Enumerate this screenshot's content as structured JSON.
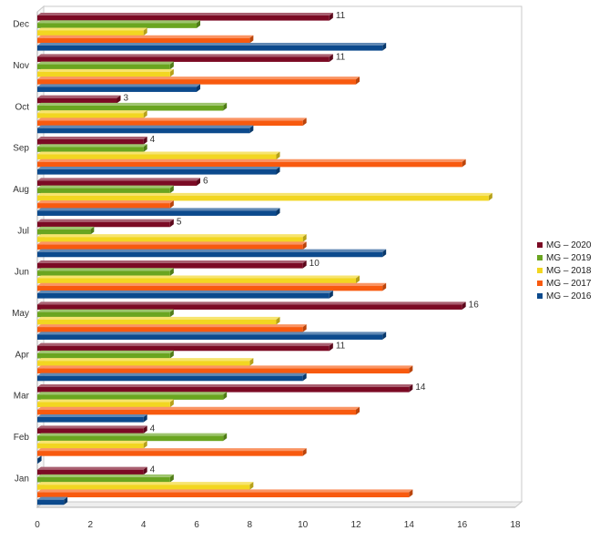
{
  "chart_data": {
    "type": "bar",
    "orientation": "horizontal",
    "style": "3d",
    "categories": [
      "Jan",
      "Feb",
      "Mar",
      "Apr",
      "May",
      "Jun",
      "Jul",
      "Aug",
      "Sep",
      "Oct",
      "Nov",
      "Dec"
    ],
    "series": [
      {
        "name": "MG – 2020",
        "color": "#7b0a24",
        "values": [
          4,
          4,
          14,
          11,
          16,
          10,
          5,
          6,
          4,
          3,
          11,
          11
        ]
      },
      {
        "name": "MG – 2019",
        "color": "#6aa520",
        "values": [
          5,
          7,
          7,
          5,
          5,
          5,
          2,
          5,
          4,
          7,
          5,
          6
        ]
      },
      {
        "name": "MG – 2018",
        "color": "#f2d621",
        "values": [
          8,
          4,
          5,
          8,
          9,
          12,
          10,
          17,
          9,
          4,
          5,
          4
        ]
      },
      {
        "name": "MG – 2017",
        "color": "#f85a0f",
        "values": [
          14,
          10,
          12,
          14,
          10,
          13,
          10,
          5,
          16,
          10,
          12,
          8
        ]
      },
      {
        "name": "MG – 2016",
        "color": "#0c4a8d",
        "values": [
          1,
          0,
          4,
          10,
          13,
          11,
          13,
          9,
          9,
          8,
          6,
          13
        ]
      }
    ],
    "data_labels_series": "MG – 2020",
    "xlim": [
      0,
      18
    ],
    "x_ticks": [
      0,
      2,
      4,
      6,
      8,
      10,
      12,
      14,
      16,
      18
    ],
    "title": "",
    "xlabel": "",
    "ylabel": "",
    "grid": false,
    "legend_position": "right"
  }
}
